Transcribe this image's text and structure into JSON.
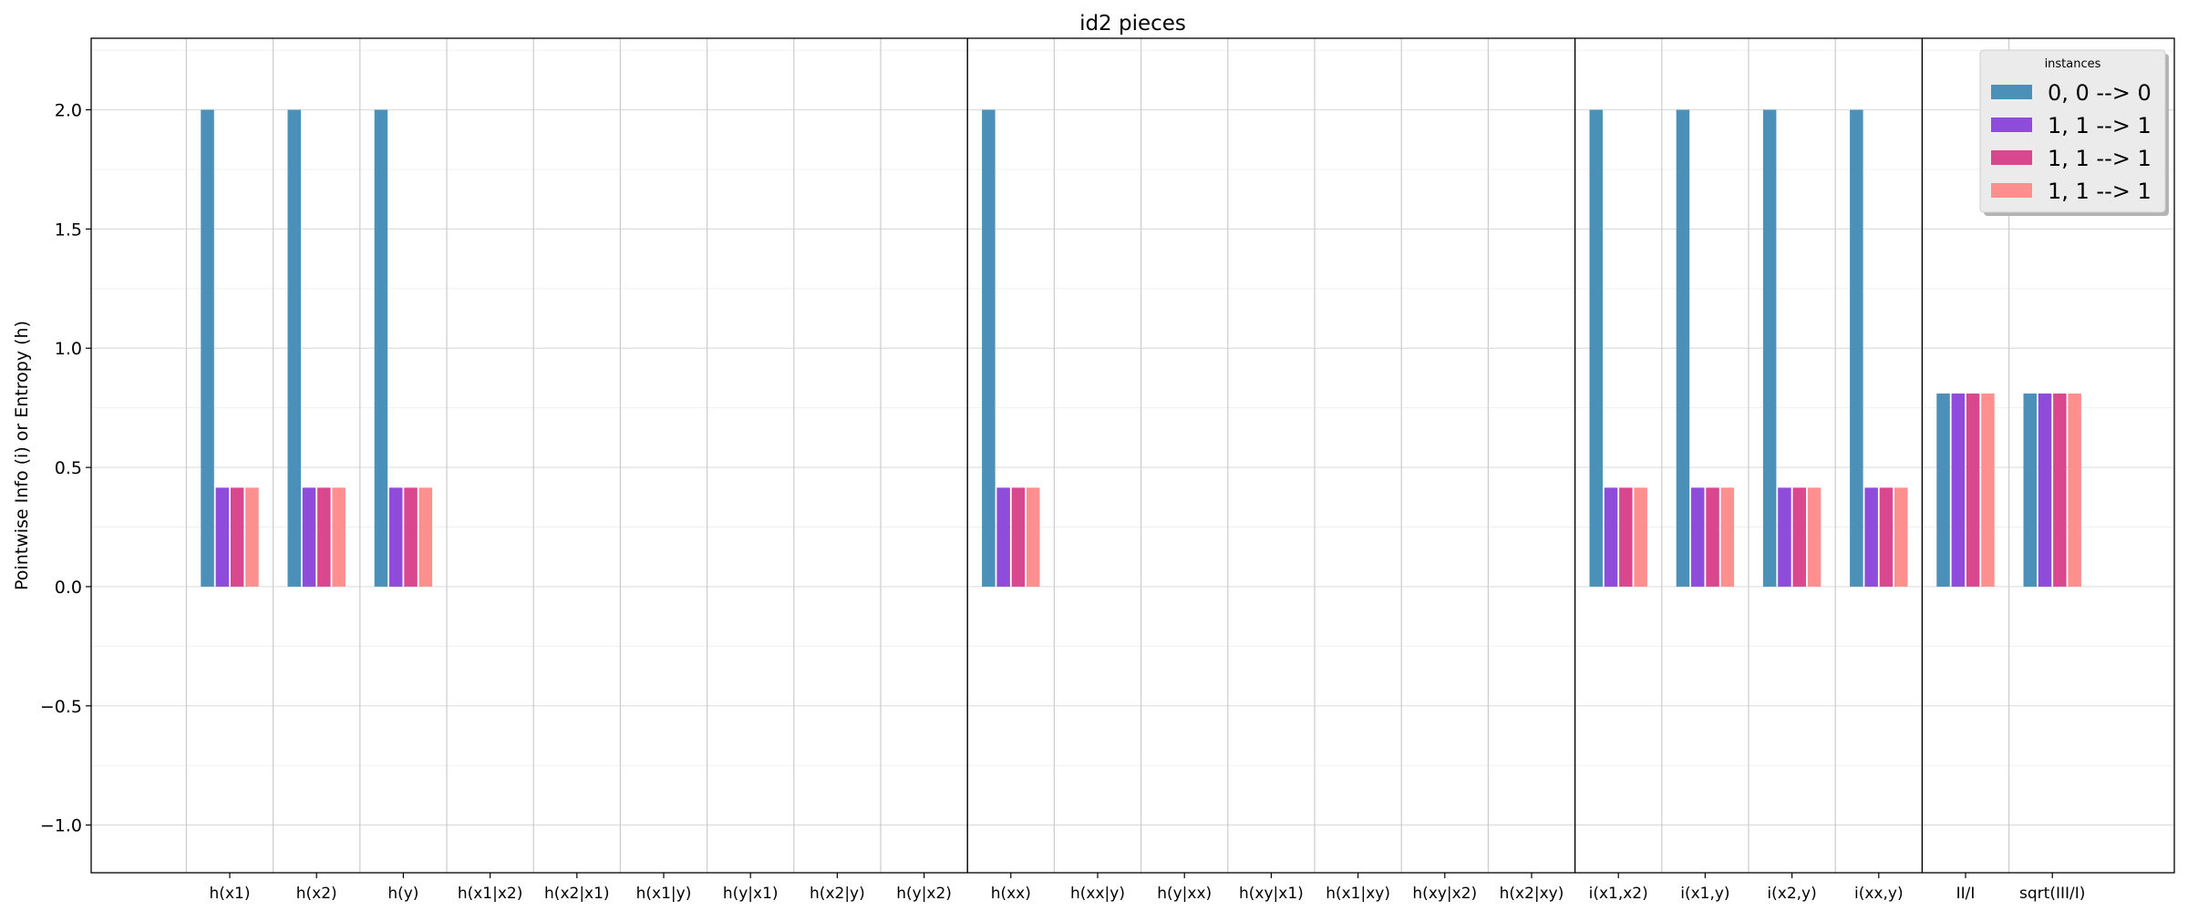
{
  "chart_data": {
    "type": "bar",
    "title": "id2 pieces",
    "xlabel": "",
    "ylabel": "Pointwise Info (i) or Entropy (h)",
    "ylim": [
      -1.2,
      2.3
    ],
    "yticks": [
      -1.0,
      -0.5,
      0.0,
      0.5,
      1.0,
      1.5,
      2.0
    ],
    "ytick_labels": [
      "−1.0",
      "−0.5",
      "0.0",
      "0.5",
      "1.0",
      "1.5",
      "2.0"
    ],
    "grid": true,
    "categories": [
      "h(x1)",
      "h(x2)",
      "h(y)",
      "h(x1|x2)",
      "h(x2|x1)",
      "h(x1|y)",
      "h(y|x1)",
      "h(x2|y)",
      "h(y|x2)",
      "h(xx)",
      "h(xx|y)",
      "h(y|xx)",
      "h(xy|x1)",
      "h(x1|xy)",
      "h(xy|x2)",
      "h(x2|xy)",
      "i(x1,x2)",
      "i(x1,y)",
      "i(x2,y)",
      "i(xx,y)",
      "II/I",
      "sqrt(III/I)"
    ],
    "group_separators_after_index": [
      8,
      15,
      19
    ],
    "legend": {
      "title": "instances",
      "position": "upper-right"
    },
    "series": [
      {
        "name": "0, 0 --> 0",
        "color": "#4a90b8",
        "values": [
          2.0,
          2.0,
          2.0,
          0,
          0,
          0,
          0,
          0,
          0,
          2.0,
          0,
          0,
          0,
          0,
          0,
          0,
          2.0,
          2.0,
          2.0,
          2.0,
          0.81,
          0.81
        ]
      },
      {
        "name": "1, 1 --> 1",
        "color": "#8f4bd9",
        "values": [
          0.415,
          0.415,
          0.415,
          0,
          0,
          0,
          0,
          0,
          0,
          0.415,
          0,
          0,
          0,
          0,
          0,
          0,
          0.415,
          0.415,
          0.415,
          0.415,
          0.81,
          0.81
        ]
      },
      {
        "name": "1, 1 --> 1",
        "color": "#d9488f",
        "values": [
          0.415,
          0.415,
          0.415,
          0,
          0,
          0,
          0,
          0,
          0,
          0.415,
          0,
          0,
          0,
          0,
          0,
          0,
          0.415,
          0.415,
          0.415,
          0.415,
          0.81,
          0.81
        ]
      },
      {
        "name": "1, 1 --> 1",
        "color": "#fd8f8f",
        "values": [
          0.415,
          0.415,
          0.415,
          0,
          0,
          0,
          0,
          0,
          0,
          0.415,
          0,
          0,
          0,
          0,
          0,
          0,
          0.415,
          0.415,
          0.415,
          0.415,
          0.81,
          0.81
        ]
      }
    ]
  }
}
